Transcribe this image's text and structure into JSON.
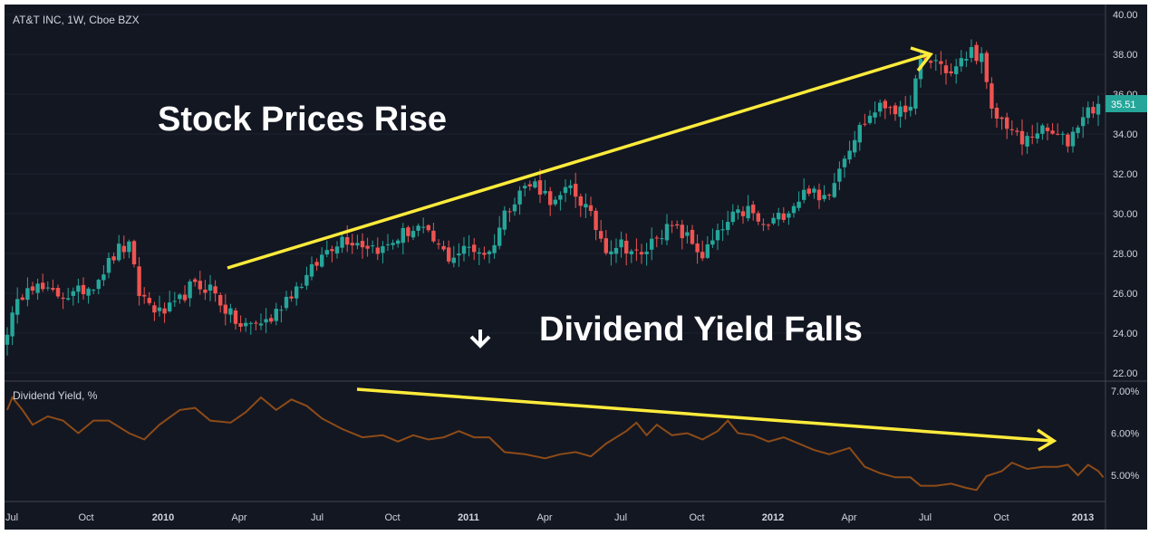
{
  "chart_data": [
    {
      "type": "candlestick",
      "title": "AT&T INC, 1W, Cboe BZX",
      "last_price": "35.51",
      "ylim": [
        22,
        40
      ],
      "y_ticks": [
        "22.00",
        "24.00",
        "26.00",
        "28.00",
        "30.00",
        "32.00",
        "34.00",
        "36.00",
        "38.00",
        "40.00"
      ],
      "x_ticks": [
        "Jul",
        "Oct",
        "2010",
        "Apr",
        "Jul",
        "Oct",
        "2011",
        "Apr",
        "Jul",
        "Oct",
        "2012",
        "Apr",
        "Jul",
        "Oct",
        "2013"
      ],
      "colors": {
        "up": "#26a69a",
        "down": "#ef5350",
        "background": "#131722",
        "last_price_bg": "#26a69a"
      },
      "close_anchors": [
        {
          "x": 0,
          "y": 24.2
        },
        {
          "x": 4,
          "y": 26.6
        },
        {
          "x": 8,
          "y": 26.0
        },
        {
          "x": 13,
          "y": 25.9
        },
        {
          "x": 17,
          "y": 26.5
        },
        {
          "x": 22,
          "y": 28.2
        },
        {
          "x": 24,
          "y": 28.3
        },
        {
          "x": 26,
          "y": 26.0
        },
        {
          "x": 30,
          "y": 25.0
        },
        {
          "x": 33,
          "y": 25.3
        },
        {
          "x": 36,
          "y": 26.3
        },
        {
          "x": 40,
          "y": 26.3
        },
        {
          "x": 43,
          "y": 25.2
        },
        {
          "x": 46,
          "y": 24.3
        },
        {
          "x": 52,
          "y": 24.7
        },
        {
          "x": 55,
          "y": 25.8
        },
        {
          "x": 59,
          "y": 26.8
        },
        {
          "x": 63,
          "y": 28.2
        },
        {
          "x": 66,
          "y": 28.8
        },
        {
          "x": 70,
          "y": 28.5
        },
        {
          "x": 74,
          "y": 28.2
        },
        {
          "x": 78,
          "y": 29.0
        },
        {
          "x": 81,
          "y": 29.3
        },
        {
          "x": 84,
          "y": 28.6
        },
        {
          "x": 87,
          "y": 27.8
        },
        {
          "x": 91,
          "y": 28.3
        },
        {
          "x": 95,
          "y": 28.0
        },
        {
          "x": 98,
          "y": 30.0
        },
        {
          "x": 101,
          "y": 31.2
        },
        {
          "x": 104,
          "y": 31.5
        },
        {
          "x": 108,
          "y": 30.5
        },
        {
          "x": 111,
          "y": 31.3
        },
        {
          "x": 114,
          "y": 30.3
        },
        {
          "x": 118,
          "y": 28.3
        },
        {
          "x": 121,
          "y": 28.5
        },
        {
          "x": 125,
          "y": 27.8
        },
        {
          "x": 128,
          "y": 29.0
        },
        {
          "x": 131,
          "y": 29.3
        },
        {
          "x": 134,
          "y": 28.8
        },
        {
          "x": 137,
          "y": 27.9
        },
        {
          "x": 140,
          "y": 28.9
        },
        {
          "x": 143,
          "y": 29.8
        },
        {
          "x": 146,
          "y": 30.2
        },
        {
          "x": 149,
          "y": 29.3
        },
        {
          "x": 152,
          "y": 29.8
        },
        {
          "x": 155,
          "y": 30.5
        },
        {
          "x": 158,
          "y": 31.3
        },
        {
          "x": 160,
          "y": 30.6
        },
        {
          "x": 162,
          "y": 31.2
        },
        {
          "x": 165,
          "y": 33.0
        },
        {
          "x": 168,
          "y": 34.3
        },
        {
          "x": 171,
          "y": 35.2
        },
        {
          "x": 174,
          "y": 35.5
        },
        {
          "x": 177,
          "y": 34.8
        },
        {
          "x": 180,
          "y": 37.5
        },
        {
          "x": 183,
          "y": 37.7
        },
        {
          "x": 186,
          "y": 37.0
        },
        {
          "x": 188,
          "y": 37.6
        },
        {
          "x": 190,
          "y": 38.2
        },
        {
          "x": 192,
          "y": 37.8
        },
        {
          "x": 194,
          "y": 35.0
        },
        {
          "x": 197,
          "y": 34.5
        },
        {
          "x": 200,
          "y": 33.5
        },
        {
          "x": 203,
          "y": 34.2
        },
        {
          "x": 206,
          "y": 34.0
        },
        {
          "x": 209,
          "y": 33.6
        },
        {
          "x": 212,
          "y": 35.0
        },
        {
          "x": 215,
          "y": 35.51
        }
      ]
    },
    {
      "type": "line",
      "title": "Dividend Yield, %",
      "ylim": [
        4.5,
        7.2
      ],
      "y_ticks": [
        "5.00%",
        "6.00%",
        "7.00%"
      ],
      "colors": {
        "line": "#8d4b17"
      },
      "points": [
        {
          "x": 0,
          "y": 6.55
        },
        {
          "x": 1,
          "y": 6.85
        },
        {
          "x": 3,
          "y": 6.55
        },
        {
          "x": 5,
          "y": 6.2
        },
        {
          "x": 8,
          "y": 6.4
        },
        {
          "x": 11,
          "y": 6.3
        },
        {
          "x": 14,
          "y": 6.0
        },
        {
          "x": 17,
          "y": 6.3
        },
        {
          "x": 20,
          "y": 6.3
        },
        {
          "x": 24,
          "y": 6.0
        },
        {
          "x": 27,
          "y": 5.85
        },
        {
          "x": 30,
          "y": 6.2
        },
        {
          "x": 34,
          "y": 6.55
        },
        {
          "x": 37,
          "y": 6.6
        },
        {
          "x": 40,
          "y": 6.3
        },
        {
          "x": 44,
          "y": 6.25
        },
        {
          "x": 47,
          "y": 6.5
        },
        {
          "x": 50,
          "y": 6.85
        },
        {
          "x": 53,
          "y": 6.55
        },
        {
          "x": 56,
          "y": 6.8
        },
        {
          "x": 59,
          "y": 6.65
        },
        {
          "x": 62,
          "y": 6.35
        },
        {
          "x": 66,
          "y": 6.1
        },
        {
          "x": 70,
          "y": 5.9
        },
        {
          "x": 74,
          "y": 5.95
        },
        {
          "x": 77,
          "y": 5.8
        },
        {
          "x": 80,
          "y": 5.95
        },
        {
          "x": 83,
          "y": 5.85
        },
        {
          "x": 86,
          "y": 5.9
        },
        {
          "x": 89,
          "y": 6.05
        },
        {
          "x": 92,
          "y": 5.9
        },
        {
          "x": 95,
          "y": 5.9
        },
        {
          "x": 98,
          "y": 5.55
        },
        {
          "x": 102,
          "y": 5.5
        },
        {
          "x": 106,
          "y": 5.4
        },
        {
          "x": 109,
          "y": 5.5
        },
        {
          "x": 112,
          "y": 5.55
        },
        {
          "x": 115,
          "y": 5.45
        },
        {
          "x": 118,
          "y": 5.75
        },
        {
          "x": 122,
          "y": 6.05
        },
        {
          "x": 124,
          "y": 6.25
        },
        {
          "x": 126,
          "y": 5.95
        },
        {
          "x": 128,
          "y": 6.2
        },
        {
          "x": 131,
          "y": 5.95
        },
        {
          "x": 134,
          "y": 6.0
        },
        {
          "x": 137,
          "y": 5.85
        },
        {
          "x": 140,
          "y": 6.05
        },
        {
          "x": 142,
          "y": 6.3
        },
        {
          "x": 144,
          "y": 6.0
        },
        {
          "x": 147,
          "y": 5.95
        },
        {
          "x": 150,
          "y": 5.8
        },
        {
          "x": 153,
          "y": 5.9
        },
        {
          "x": 156,
          "y": 5.75
        },
        {
          "x": 159,
          "y": 5.6
        },
        {
          "x": 162,
          "y": 5.5
        },
        {
          "x": 166,
          "y": 5.65
        },
        {
          "x": 169,
          "y": 5.2
        },
        {
          "x": 172,
          "y": 5.05
        },
        {
          "x": 175,
          "y": 4.95
        },
        {
          "x": 178,
          "y": 4.95
        },
        {
          "x": 180,
          "y": 4.75
        },
        {
          "x": 183,
          "y": 4.75
        },
        {
          "x": 186,
          "y": 4.8
        },
        {
          "x": 189,
          "y": 4.7
        },
        {
          "x": 191,
          "y": 4.65
        },
        {
          "x": 193,
          "y": 4.98
        },
        {
          "x": 196,
          "y": 5.1
        },
        {
          "x": 198,
          "y": 5.3
        },
        {
          "x": 201,
          "y": 5.15
        },
        {
          "x": 204,
          "y": 5.2
        },
        {
          "x": 207,
          "y": 5.2
        },
        {
          "x": 209,
          "y": 5.25
        },
        {
          "x": 211,
          "y": 5.0
        },
        {
          "x": 213,
          "y": 5.25
        },
        {
          "x": 215,
          "y": 5.1
        },
        {
          "x": 216,
          "y": 4.95
        }
      ]
    }
  ],
  "annotations": {
    "rise_text": "Stock Prices Rise",
    "fall_text": "Dividend Yield Falls"
  }
}
